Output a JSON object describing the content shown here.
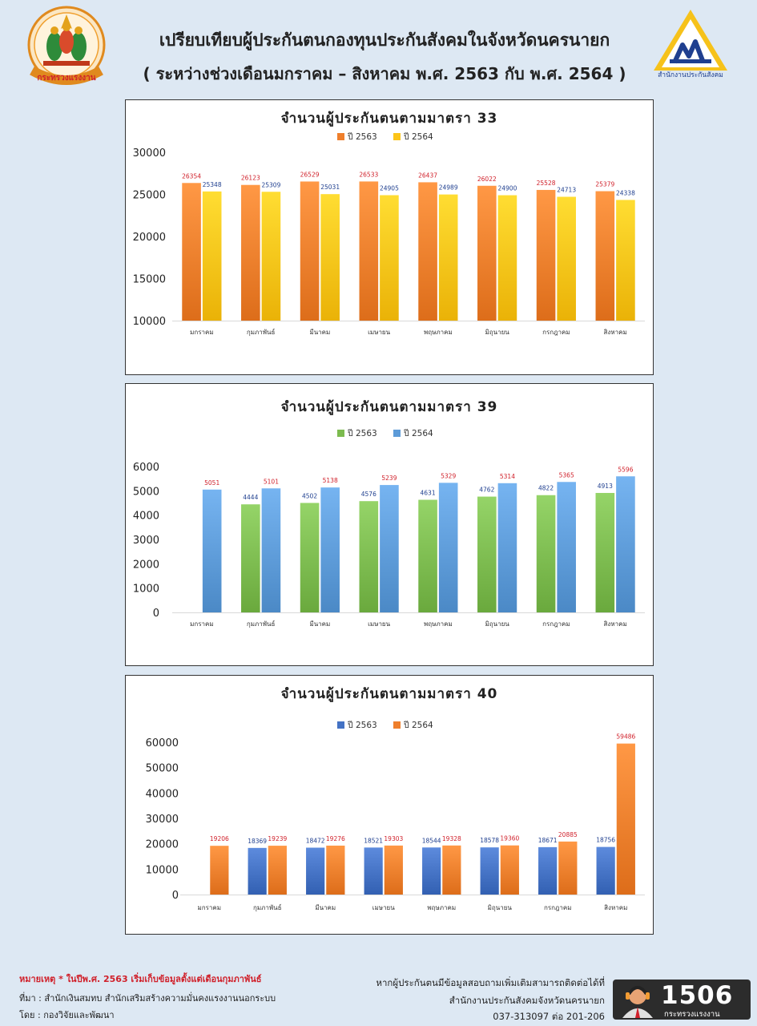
{
  "header": {
    "title_line1": "เปรียบเทียบผู้ประกันตนกองทุนประกันสังคมในจังหวัดนครนายก",
    "title_line2": "( ระหว่างช่วงเดือนมกราคม – สิงหาคม พ.ศ. 2563 กับ พ.ศ. 2564 )",
    "left_logo_text": "กระทรวงแรงงาน",
    "right_logo_text": "สำนักงานประกันสังคม"
  },
  "chart_data": [
    {
      "type": "bar",
      "title": "จำนวนผู้ประกันตนตามมาตรา 33",
      "categories": [
        "มกราคม",
        "กุมภาพันธ์",
        "มีนาคม",
        "เมษายน",
        "พฤษภาคม",
        "มิถุนายน",
        "กรกฎาคม",
        "สิงหาคม"
      ],
      "series": [
        {
          "name": "ปี 2563",
          "color": "#ef7f2c",
          "label_color": "#d0202a",
          "values": [
            26354,
            26123,
            26529,
            26533,
            26437,
            26022,
            25528,
            25379
          ]
        },
        {
          "name": "ปี 2564",
          "color": "#fcc419",
          "label_color": "#1f3f8f",
          "values": [
            25348,
            25309,
            25031,
            24905,
            24989,
            24900,
            24713,
            24338
          ]
        }
      ],
      "ylim": [
        10000,
        30000
      ],
      "yticks": [
        10000,
        15000,
        20000,
        25000,
        30000
      ],
      "legend": "top",
      "grid": false
    },
    {
      "type": "bar",
      "title": "จำนวนผู้ประกันตนตามมาตรา 39",
      "categories": [
        "มกราคม",
        "กุมภาพันธ์",
        "มีนาคม",
        "เมษายน",
        "พฤษภาคม",
        "มิถุนายน",
        "กรกฎาคม",
        "สิงหาคม"
      ],
      "series": [
        {
          "name": "ปี 2563",
          "color": "#7cbb4f",
          "label_color": "#1f3f8f",
          "values": [
            null,
            4444,
            4502,
            4576,
            4631,
            4762,
            4822,
            4913
          ]
        },
        {
          "name": "ปี 2564",
          "color": "#5d9bd8",
          "label_color": "#d0202a",
          "values": [
            5051,
            5101,
            5138,
            5239,
            5329,
            5314,
            5365,
            5596
          ]
        }
      ],
      "ylim": [
        0,
        6000
      ],
      "yticks": [
        0,
        1000,
        2000,
        3000,
        4000,
        5000,
        6000
      ],
      "legend": "top",
      "grid": false
    },
    {
      "type": "bar",
      "title": "จำนวนผู้ประกันตนตามมาตรา 40",
      "categories": [
        "มกราคม",
        "กุมภาพันธ์",
        "มีนาคม",
        "เมษายน",
        "พฤษภาคม",
        "มิถุนายน",
        "กรกฎาคม",
        "สิงหาคม"
      ],
      "series": [
        {
          "name": "ปี 2563",
          "color": "#4472c4",
          "label_color": "#1f3f8f",
          "values": [
            null,
            18369,
            18472,
            18521,
            18544,
            18578,
            18671,
            18756
          ]
        },
        {
          "name": "ปี 2564",
          "color": "#ef7f2c",
          "label_color": "#d0202a",
          "values": [
            19206,
            19239,
            19276,
            19303,
            19328,
            19360,
            20885,
            59486
          ]
        }
      ],
      "ylim": [
        0,
        60000
      ],
      "yticks": [
        0,
        10000,
        20000,
        30000,
        40000,
        50000,
        60000
      ],
      "legend": "top",
      "grid": false
    }
  ],
  "footer": {
    "note": "หมายเหตุ * ในปีพ.ศ. 2563 เริ่มเก็บข้อมูลตั้งแต่เดือนกุมภาพันธ์",
    "source": "ที่มา : สำนักเงินสมทบ สำนักเสริมสร้างความมั่นคงแรงงานนอกระบบ",
    "by": "โดย : กองวิจัยและพัฒนา",
    "contact_line1": "หากผู้ประกันตนมีข้อมูลสอบถามเพิ่มเติมสามารถติดต่อได้ที่",
    "contact_line2": "สำนักงานประกันสังคมจังหวัดนครนายก",
    "contact_line3": "037-313097 ต่อ 201-206",
    "hotline_number": "1506",
    "hotline_sub": "กระทรวงแรงงาน"
  }
}
